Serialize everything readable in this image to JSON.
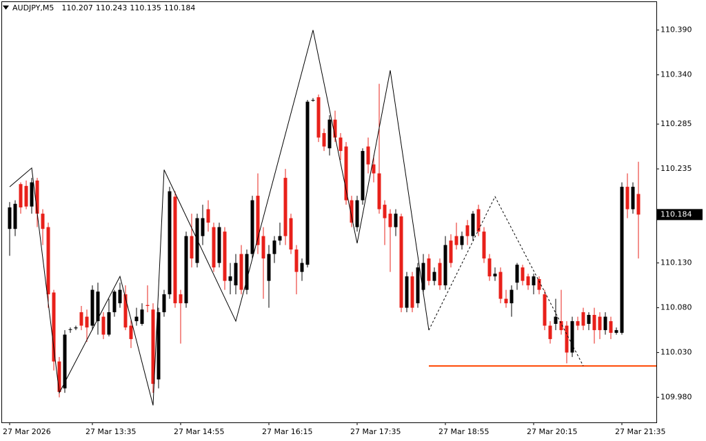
{
  "chart_data": {
    "type": "candlestick",
    "title": "AUDJPY,M5",
    "ohlc": [
      110.207,
      110.243,
      110.135,
      110.184
    ],
    "current_price": 110.184,
    "up_color": "#000000",
    "down_color": "#e8201a",
    "grid": false,
    "ylim": [
      109.952,
      110.422
    ],
    "yticks": [
      {
        "value": 109.98,
        "label": "109.980"
      },
      {
        "value": 110.03,
        "label": "110.030"
      },
      {
        "value": 110.08,
        "label": "110.080"
      },
      {
        "value": 110.13,
        "label": "110.130"
      },
      110.235,
      110.285,
      {
        "value": 110.34,
        "label": "110.340"
      },
      {
        "value": 110.39,
        "label": "110.390"
      }
    ],
    "x": [
      "27 Mar 2026",
      null,
      null,
      null,
      null,
      null,
      null,
      null,
      null,
      null,
      null,
      null,
      null,
      null,
      null,
      "27 Mar 13:35",
      null,
      null,
      null,
      null,
      null,
      null,
      null,
      null,
      null,
      null,
      null,
      null,
      null,
      null,
      null,
      "27 Mar 14:55",
      null,
      null,
      null,
      null,
      null,
      null,
      null,
      null,
      null,
      null,
      null,
      null,
      null,
      null,
      null,
      "27 Mar 16:15",
      null,
      null,
      null,
      null,
      null,
      null,
      null,
      null,
      null,
      null,
      null,
      null,
      null,
      null,
      null,
      "27 Mar 17:35",
      null,
      null,
      null,
      null,
      null,
      null,
      null,
      null,
      null,
      null,
      null,
      null,
      null,
      null,
      null,
      "27 Mar 18:55",
      null,
      null,
      null,
      null,
      null,
      null,
      null,
      null,
      null,
      null,
      null,
      null,
      null,
      null,
      null,
      "27 Mar 20:15",
      null,
      null,
      null,
      null,
      null,
      null,
      null,
      null,
      null,
      null,
      null,
      null,
      null,
      null,
      null,
      "27 Mar 21:35",
      null,
      null,
      null
    ],
    "open": [
      110.168,
      110.168,
      110.218,
      110.216,
      110.193,
      110.222,
      110.185,
      110.17,
      110.097,
      110.02,
      109.99,
      110.056,
      110.057,
      110.075,
      110.07,
      110.06,
      110.065,
      110.07,
      110.05,
      110.075,
      110.085,
      110.095,
      110.06,
      110.065,
      110.062,
      110.083,
      110.078,
      110.0,
      110.075,
      110.095,
      110.204,
      110.095,
      110.085,
      110.16,
      110.13,
      110.16,
      110.19,
      110.17,
      110.13,
      110.165,
      110.11,
      110.105,
      110.14,
      110.1,
      110.14,
      110.205,
      110.16,
      110.11,
      110.14,
      110.155,
      110.225,
      110.18,
      110.145,
      110.12,
      110.128,
      110.312,
      110.315,
      110.275,
      110.258,
      110.29,
      110.27,
      110.26,
      110.2,
      110.17,
      110.2,
      110.26,
      110.24,
      110.23,
      110.195,
      110.185,
      110.17,
      110.182,
      110.08,
      110.115,
      110.085,
      110.1,
      110.135,
      110.11,
      110.13,
      110.105,
      110.155,
      110.16,
      110.15,
      110.172,
      110.16,
      110.19,
      110.165,
      110.135,
      110.115,
      110.12,
      110.09,
      110.085,
      110.108,
      110.125,
      110.115,
      110.105,
      110.112,
      110.095,
      110.06,
      110.062,
      110.065,
      110.06,
      110.03,
      110.065,
      110.075,
      110.062,
      110.072,
      110.07,
      110.055,
      110.065,
      110.052,
      110.052,
      110.215,
      110.19,
      110.207
    ],
    "high": [
      110.198,
      110.2,
      110.22,
      110.222,
      110.225,
      110.225,
      110.19,
      110.175,
      110.1,
      110.025,
      110.055,
      110.058,
      110.06,
      110.082,
      110.078,
      110.105,
      110.108,
      110.075,
      110.09,
      110.1,
      110.108,
      110.105,
      110.066,
      110.08,
      110.085,
      110.105,
      110.085,
      110.08,
      110.1,
      110.215,
      110.21,
      110.1,
      110.165,
      110.185,
      110.185,
      110.195,
      110.2,
      110.175,
      110.175,
      110.17,
      110.13,
      110.14,
      110.15,
      110.145,
      110.205,
      110.23,
      110.17,
      110.15,
      110.16,
      110.175,
      110.235,
      110.185,
      110.15,
      110.135,
      110.312,
      110.314,
      110.318,
      110.28,
      110.295,
      110.3,
      110.275,
      110.265,
      110.205,
      110.205,
      110.258,
      110.27,
      110.25,
      110.33,
      110.2,
      110.19,
      110.19,
      110.185,
      110.12,
      110.12,
      110.13,
      110.14,
      110.14,
      110.125,
      110.135,
      110.16,
      110.162,
      110.175,
      110.165,
      110.178,
      110.188,
      110.195,
      110.17,
      110.14,
      110.125,
      110.125,
      110.1,
      110.105,
      110.13,
      110.128,
      110.118,
      110.118,
      110.115,
      110.1,
      110.065,
      110.09,
      110.1,
      110.065,
      110.07,
      110.07,
      110.08,
      110.075,
      110.08,
      110.075,
      110.075,
      110.07,
      110.058,
      110.22,
      110.23,
      110.22,
      110.243
    ],
    "low": [
      110.138,
      110.16,
      110.185,
      110.19,
      110.185,
      110.17,
      110.15,
      110.08,
      110.01,
      109.98,
      109.985,
      110.052,
      110.055,
      110.055,
      110.042,
      110.055,
      110.05,
      110.045,
      110.048,
      110.07,
      110.08,
      110.055,
      110.035,
      110.06,
      110.06,
      110.075,
      109.985,
      109.99,
      110.07,
      110.09,
      110.08,
      110.04,
      110.08,
      110.125,
      110.125,
      110.15,
      110.165,
      110.12,
      110.125,
      110.1,
      110.095,
      110.095,
      110.095,
      110.095,
      110.135,
      110.14,
      110.09,
      110.08,
      110.13,
      110.15,
      110.15,
      110.14,
      110.095,
      110.11,
      110.125,
      110.31,
      110.265,
      110.255,
      110.25,
      110.265,
      110.245,
      110.195,
      110.17,
      110.165,
      110.195,
      110.23,
      110.22,
      110.185,
      110.15,
      110.12,
      110.16,
      110.075,
      110.075,
      110.075,
      110.08,
      110.095,
      110.105,
      110.105,
      110.1,
      110.1,
      110.125,
      110.145,
      110.145,
      110.15,
      110.155,
      110.16,
      110.13,
      110.11,
      110.11,
      110.085,
      110.08,
      110.07,
      110.1,
      110.105,
      110.1,
      110.095,
      110.095,
      110.055,
      110.04,
      110.055,
      110.05,
      110.018,
      110.025,
      110.055,
      110.055,
      110.055,
      110.04,
      110.045,
      110.05,
      110.045,
      110.05,
      110.05,
      110.18,
      110.185,
      110.135
    ],
    "close": [
      110.192,
      110.196,
      110.192,
      110.193,
      110.22,
      110.185,
      110.168,
      110.095,
      110.02,
      109.986,
      110.05,
      110.056,
      110.058,
      110.06,
      110.058,
      110.1,
      110.098,
      110.05,
      110.075,
      110.098,
      110.1,
      110.058,
      110.045,
      110.07,
      110.078,
      110.082,
      109.995,
      110.075,
      110.095,
      110.21,
      110.085,
      110.085,
      110.16,
      110.135,
      110.18,
      110.18,
      110.175,
      110.125,
      110.17,
      110.11,
      110.115,
      110.13,
      110.1,
      110.14,
      110.2,
      110.15,
      110.135,
      110.14,
      110.155,
      110.16,
      110.16,
      110.145,
      110.12,
      110.13,
      110.31,
      110.312,
      110.27,
      110.26,
      110.29,
      110.27,
      110.255,
      110.2,
      110.175,
      110.2,
      110.255,
      110.24,
      110.23,
      110.19,
      110.18,
      110.17,
      110.185,
      110.08,
      110.115,
      110.08,
      110.125,
      110.13,
      110.11,
      110.12,
      110.105,
      110.15,
      110.13,
      110.15,
      110.16,
      110.16,
      110.185,
      110.165,
      110.135,
      110.115,
      110.118,
      110.09,
      110.085,
      110.1,
      110.128,
      110.11,
      110.105,
      110.115,
      110.1,
      110.06,
      110.045,
      110.07,
      110.055,
      110.03,
      110.065,
      110.06,
      110.06,
      110.072,
      110.055,
      110.055,
      110.07,
      110.052,
      110.055,
      110.215,
      110.19,
      110.215,
      110.184
    ],
    "indicators": [
      {
        "style": "solid",
        "color": "#000000",
        "x": [
          0,
          4,
          9,
          20,
          26,
          28,
          41,
          55,
          63,
          69,
          76
        ],
        "values": [
          110.215,
          110.236,
          109.985,
          110.115,
          109.971,
          110.234,
          110.065,
          110.39,
          110.152,
          110.345,
          110.055
        ]
      },
      {
        "style": "dashed",
        "color": "#000000",
        "x": [
          76,
          88,
          104
        ],
        "values": [
          110.055,
          110.204,
          110.015
        ]
      }
    ],
    "level": {
      "value": 110.015,
      "from": 76,
      "color": "#ff4500"
    }
  }
}
